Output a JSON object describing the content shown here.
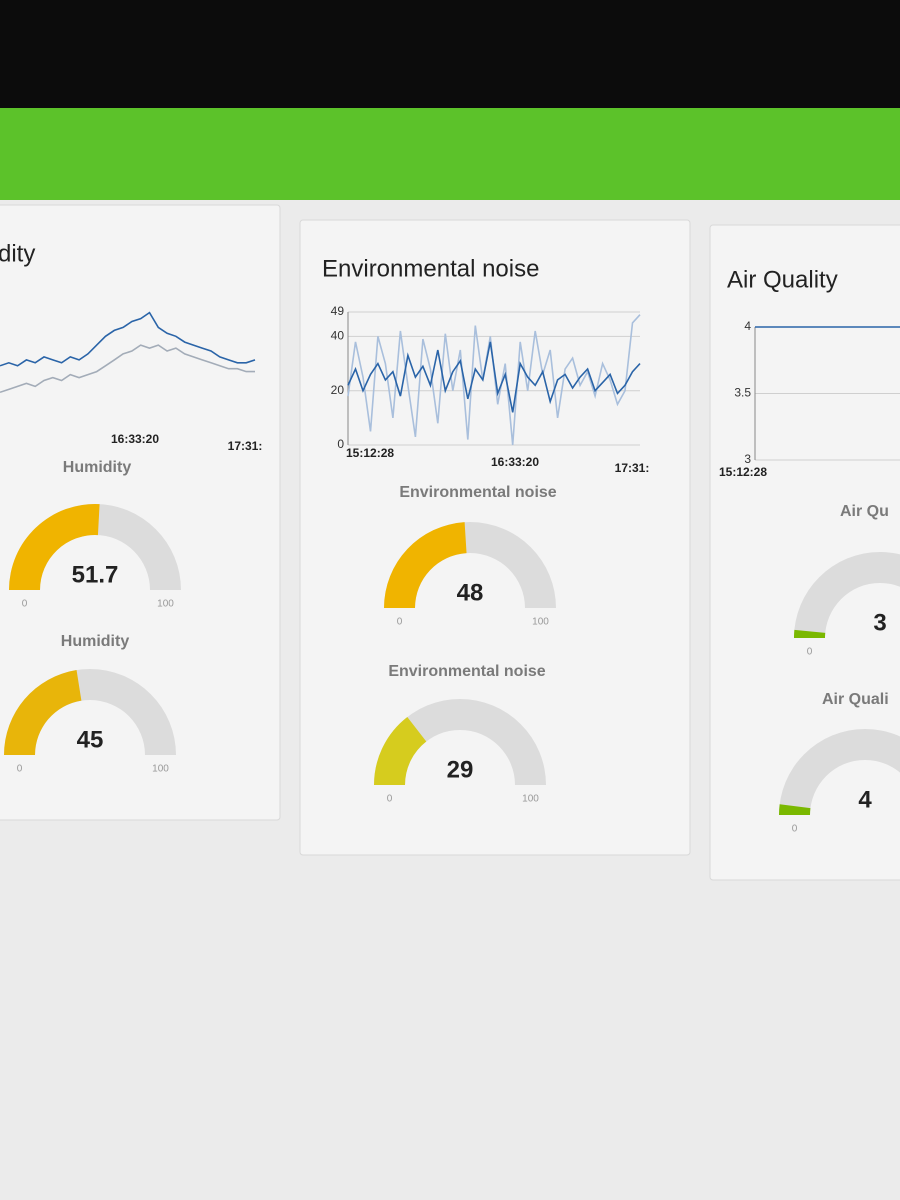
{
  "panels": [
    {
      "title": "dity",
      "chart": {
        "type": "line",
        "series": [
          {
            "color": "#2a64a8",
            "values": [
              45,
              46,
              45,
              47,
              46,
              48,
              47,
              46,
              48,
              47,
              49,
              52,
              55,
              57,
              58,
              60,
              61,
              63,
              58,
              56,
              55,
              53,
              52,
              51,
              50,
              48,
              47,
              46,
              46,
              47
            ]
          },
          {
            "color": "#a3acb8",
            "values": [
              36,
              37,
              38,
              39,
              38,
              40,
              41,
              40,
              42,
              41,
              42,
              43,
              45,
              47,
              49,
              50,
              52,
              51,
              52,
              50,
              51,
              49,
              48,
              47,
              46,
              45,
              44,
              44,
              43,
              43
            ]
          }
        ],
        "ylim": [
          30,
          70
        ],
        "x_labels": [
          "16:33:20",
          "17:31:"
        ]
      },
      "gauges": [
        {
          "label": "Humidity",
          "value": 51.7,
          "min": 0,
          "max": 100,
          "color": "#f0b400"
        },
        {
          "label": "Humidity",
          "value": 45,
          "min": 0,
          "max": 100,
          "color": "#e8b50a"
        }
      ]
    },
    {
      "title": "Environmental noise",
      "chart": {
        "type": "line",
        "series": [
          {
            "color": "#a9bfdc",
            "values": [
              18,
              38,
              25,
              5,
              40,
              30,
              10,
              42,
              22,
              3,
              39,
              28,
              8,
              41,
              20,
              35,
              2,
              44,
              24,
              40,
              15,
              30,
              0,
              38,
              20,
              42,
              26,
              35,
              10,
              28,
              32,
              22,
              27,
              18,
              30,
              24,
              15,
              20,
              45,
              48
            ]
          },
          {
            "color": "#2a64a8",
            "values": [
              22,
              28,
              20,
              26,
              30,
              24,
              27,
              18,
              33,
              25,
              29,
              22,
              35,
              20,
              27,
              31,
              17,
              28,
              24,
              38,
              19,
              26,
              12,
              30,
              25,
              22,
              27,
              16,
              24,
              26,
              21,
              25,
              28,
              20,
              23,
              26,
              19,
              22,
              27,
              30
            ]
          }
        ],
        "ylim": [
          0,
          49
        ],
        "yticks": [
          0,
          20,
          40,
          49
        ],
        "grid": true,
        "x_labels": [
          "15:12:28",
          "16:33:20",
          "17:31:"
        ]
      },
      "gauges": [
        {
          "label": "Environmental noise",
          "value": 48,
          "min": 0,
          "max": 100,
          "color": "#f0b400"
        },
        {
          "label": "Environmental noise",
          "value": 29,
          "min": 0,
          "max": 100,
          "color": "#d6cc1e"
        }
      ]
    },
    {
      "title": "Air Quality",
      "chart": {
        "type": "line",
        "series": [
          {
            "color": "#2a64a8",
            "values": [
              4,
              4,
              4,
              4,
              4,
              4
            ]
          }
        ],
        "ylim": [
          3,
          4
        ],
        "yticks": [
          3,
          3.5,
          4
        ],
        "grid": true,
        "x_labels": [
          "15:12:28"
        ]
      },
      "gauges": [
        {
          "label": "Air Qu",
          "value": 3,
          "min": 0,
          "max": 100,
          "color": "#7ab800"
        },
        {
          "label": "Air Quali",
          "value": 4,
          "min": 0,
          "max": 100,
          "color": "#7ab800"
        }
      ]
    }
  ]
}
